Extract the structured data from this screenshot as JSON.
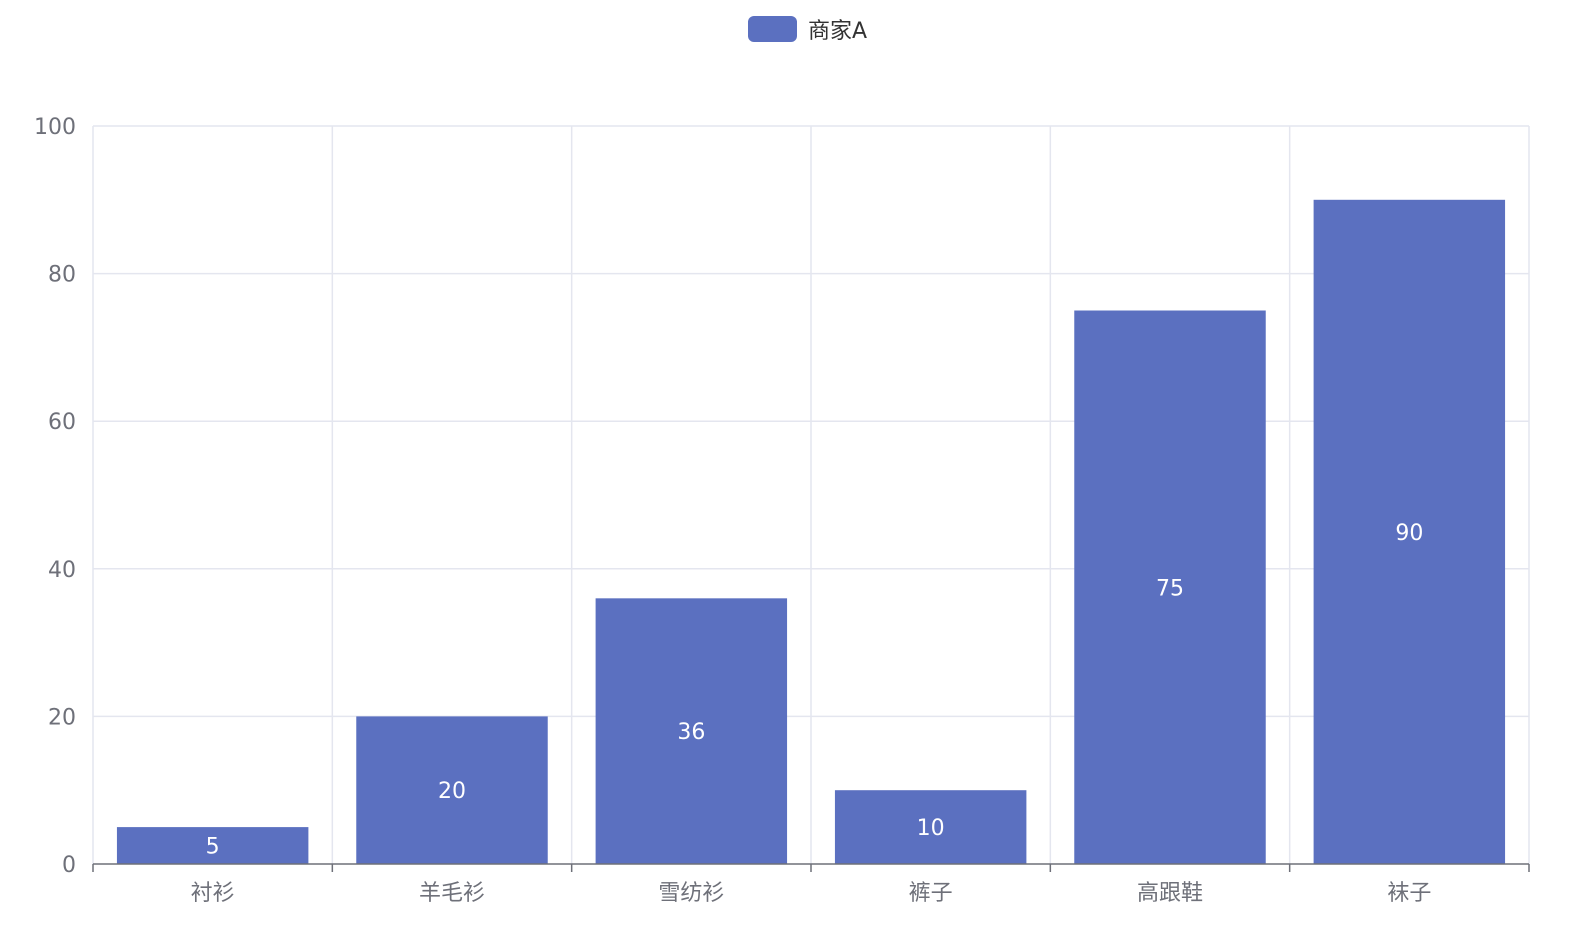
{
  "chart_data": {
    "type": "bar",
    "categories": [
      "衬衫",
      "羊毛衫",
      "雪纺衫",
      "裤子",
      "高跟鞋",
      "袜子"
    ],
    "series": [
      {
        "name": "商家A",
        "values": [
          5,
          20,
          36,
          10,
          75,
          90
        ]
      }
    ],
    "ylim": [
      0,
      100
    ],
    "yticks": [
      0,
      20,
      40,
      60,
      80,
      100
    ],
    "grid": true,
    "legend": "top-center",
    "colors": {
      "bar": "#5b70c0",
      "grid": "#e4e6ef",
      "axis": "#6e7079",
      "tick_text": "#6e7079",
      "legend_text": "#333333",
      "data_label": "#ffffff"
    }
  }
}
